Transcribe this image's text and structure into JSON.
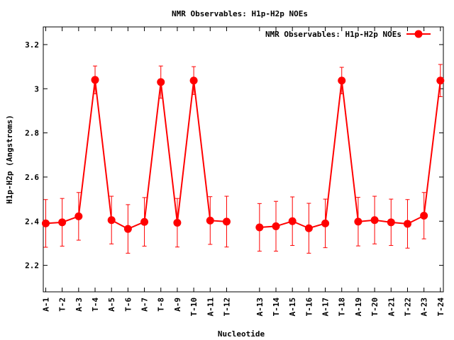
{
  "chart_data": {
    "type": "line",
    "title": "NMR Observables: H1p-H2p NOEs",
    "xlabel": "Nucleotide",
    "ylabel": "H1p-H2p (Angstroms)",
    "ylim": [
      2.08,
      3.28
    ],
    "yticks": [
      2.2,
      2.4,
      2.6,
      2.8,
      3,
      3.2
    ],
    "ytick_labels": [
      "2.2",
      "2.4",
      "2.6",
      "2.8",
      "3",
      "3.2"
    ],
    "grid": false,
    "legend_position": "top-right",
    "categories": [
      "A-1",
      "T-2",
      "A-3",
      "T-4",
      "A-5",
      "T-6",
      "A-7",
      "T-8",
      "A-9",
      "T-10",
      "A-11",
      "T-12",
      "A-13",
      "T-14",
      "A-15",
      "T-16",
      "A-17",
      "T-18",
      "A-19",
      "T-20",
      "A-21",
      "T-22",
      "A-23",
      "T-24"
    ],
    "x": [
      1,
      2,
      3,
      4,
      5,
      6,
      7,
      8,
      9,
      10,
      11,
      12,
      14,
      15,
      16,
      17,
      18,
      19,
      20,
      21,
      22,
      23,
      24,
      25
    ],
    "xlim": [
      0.85,
      25.18
    ],
    "color": "#ff0000",
    "series": [
      {
        "name": "NMR Observables: H1p-H2p NOEs",
        "segments": [
          [
            0,
            11
          ],
          [
            12,
            23
          ]
        ],
        "values": [
          2.39,
          2.395,
          2.422,
          3.04,
          2.405,
          2.365,
          2.397,
          3.03,
          2.393,
          3.037,
          2.403,
          2.398,
          2.372,
          2.377,
          2.4,
          2.368,
          2.39,
          3.037,
          2.398,
          2.405,
          2.395,
          2.388,
          2.425,
          3.037
        ],
        "errors": [
          0.108,
          0.108,
          0.108,
          0.063,
          0.108,
          0.11,
          0.11,
          0.073,
          0.11,
          0.063,
          0.108,
          0.115,
          0.108,
          0.113,
          0.11,
          0.113,
          0.11,
          0.06,
          0.11,
          0.108,
          0.105,
          0.11,
          0.105,
          0.073
        ]
      }
    ]
  }
}
